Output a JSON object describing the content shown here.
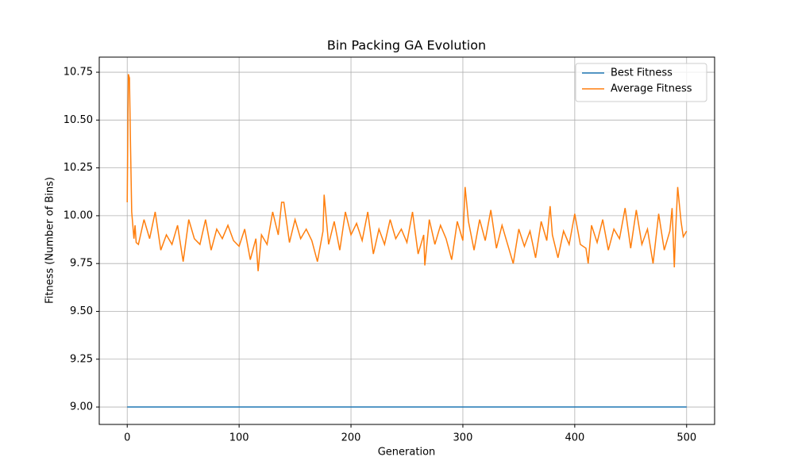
{
  "chart_data": {
    "type": "line",
    "title": "Bin Packing GA Evolution",
    "x_label": "Generation",
    "y_label": "Fitness (Number of Bins)",
    "xlim": [
      -25,
      525
    ],
    "xticks": [
      0,
      100,
      200,
      300,
      400,
      500
    ],
    "ylim": [
      8.909,
      10.829
    ],
    "yticks": [
      {
        "value": 9,
        "label": "9.00"
      },
      {
        "value": 9.25,
        "label": "9.25"
      },
      {
        "value": 9.5,
        "label": "9.50"
      },
      {
        "value": 9.75,
        "label": "9.75"
      },
      {
        "value": 10,
        "label": "10.00"
      },
      {
        "value": 10.25,
        "label": "10.25"
      },
      {
        "value": 10.5,
        "label": "10.50"
      },
      {
        "value": 10.75,
        "label": "10.75"
      }
    ],
    "grid": true,
    "legend": "upper right",
    "series": [
      {
        "name": "Best Fitness",
        "color": "#1f77b4",
        "x": [
          0,
          500
        ],
        "values": [
          9,
          9
        ]
      },
      {
        "name": "Average Fitness",
        "color": "#ff7f0e",
        "x": [
          0,
          1,
          2,
          3,
          4,
          5,
          6,
          7,
          8,
          10,
          15,
          20,
          25,
          30,
          35,
          40,
          45,
          50,
          55,
          60,
          65,
          70,
          75,
          80,
          85,
          90,
          95,
          100,
          105,
          110,
          115,
          117,
          120,
          125,
          130,
          135,
          138,
          140,
          145,
          150,
          155,
          160,
          165,
          170,
          175,
          176,
          180,
          185,
          190,
          195,
          200,
          205,
          210,
          215,
          220,
          225,
          230,
          235,
          240,
          245,
          250,
          255,
          260,
          265,
          266,
          270,
          275,
          280,
          285,
          290,
          295,
          300,
          302,
          305,
          310,
          315,
          320,
          325,
          330,
          335,
          340,
          345,
          350,
          355,
          360,
          365,
          370,
          375,
          378,
          380,
          385,
          390,
          395,
          400,
          405,
          410,
          412,
          415,
          420,
          425,
          430,
          435,
          440,
          445,
          450,
          455,
          460,
          465,
          470,
          475,
          480,
          485,
          487,
          489,
          490,
          492,
          495,
          497,
          500
        ],
        "values": [
          10.07,
          10.74,
          10.72,
          10.35,
          10.02,
          9.95,
          9.88,
          9.95,
          9.86,
          9.85,
          9.98,
          9.88,
          10.02,
          9.82,
          9.9,
          9.85,
          9.95,
          9.76,
          9.98,
          9.88,
          9.85,
          9.98,
          9.82,
          9.93,
          9.88,
          9.95,
          9.87,
          9.84,
          9.93,
          9.77,
          9.88,
          9.71,
          9.9,
          9.85,
          10.02,
          9.9,
          10.07,
          10.07,
          9.86,
          9.98,
          9.88,
          9.93,
          9.87,
          9.76,
          9.92,
          10.11,
          9.85,
          9.97,
          9.82,
          10.02,
          9.9,
          9.96,
          9.87,
          10.02,
          9.8,
          9.93,
          9.85,
          9.98,
          9.88,
          9.93,
          9.86,
          10.02,
          9.8,
          9.9,
          9.74,
          9.98,
          9.85,
          9.95,
          9.88,
          9.77,
          9.97,
          9.87,
          10.15,
          9.97,
          9.82,
          9.98,
          9.87,
          10.03,
          9.83,
          9.95,
          9.85,
          9.75,
          9.93,
          9.84,
          9.92,
          9.78,
          9.97,
          9.87,
          10.05,
          9.9,
          9.78,
          9.92,
          9.85,
          10.01,
          9.85,
          9.83,
          9.75,
          9.95,
          9.86,
          9.98,
          9.82,
          9.93,
          9.88,
          10.04,
          9.83,
          10.03,
          9.85,
          9.93,
          9.75,
          10.01,
          9.82,
          9.92,
          10.04,
          9.73,
          9.9,
          10.15,
          9.97,
          9.89,
          9.92
        ]
      }
    ]
  }
}
